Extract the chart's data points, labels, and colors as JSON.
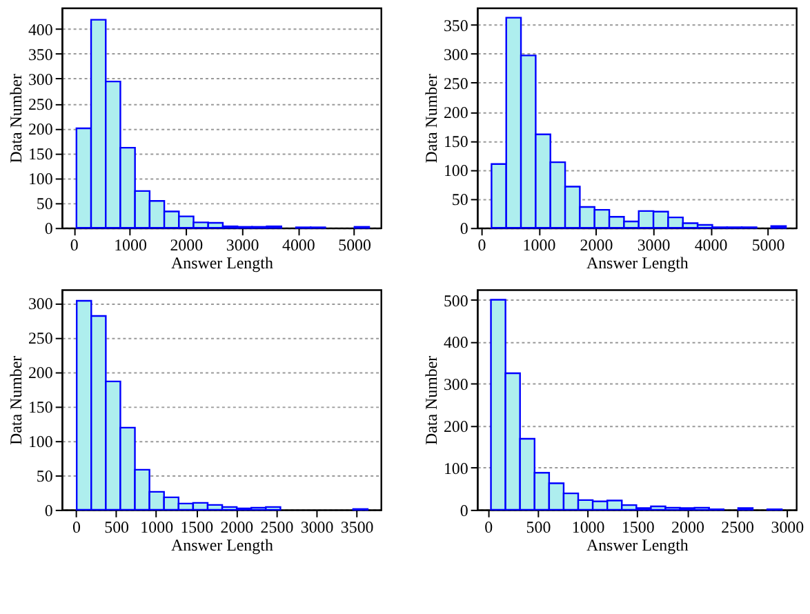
{
  "chart_data": [
    {
      "type": "histogram",
      "xlabel": "Answer Length",
      "ylabel": "Data Number",
      "color": "#aeeeee",
      "grid": "y",
      "bins": [
        50,
        311,
        572,
        833,
        1094,
        1355,
        1616,
        1877,
        2138,
        2399,
        2660,
        2921,
        3182,
        3443,
        3704,
        3965,
        4226,
        4487,
        4748,
        5009,
        5270
      ],
      "values": [
        200,
        418,
        294,
        161,
        74,
        54,
        33,
        23,
        11,
        10,
        3,
        2,
        2,
        3,
        0,
        1,
        1,
        0,
        0,
        2
      ],
      "xlim": [
        -210,
        5480
      ],
      "ylim": [
        0,
        442
      ],
      "xticks": [
        0,
        1000,
        2000,
        3000,
        4000,
        5000
      ],
      "yticks": [
        0,
        50,
        100,
        150,
        200,
        250,
        300,
        350,
        400
      ]
    },
    {
      "type": "histogram",
      "xlabel": "Answer Length",
      "ylabel": "Data Number",
      "color": "#aeeeee",
      "grid": "y",
      "bins": [
        180,
        437,
        694,
        951,
        1208,
        1465,
        1722,
        1979,
        2236,
        2493,
        2750,
        3007,
        3264,
        3521,
        3778,
        4035,
        4292,
        4549,
        4806,
        5063,
        5320
      ],
      "values": [
        110,
        362,
        297,
        161,
        113,
        71,
        36,
        31,
        19,
        11,
        29,
        28,
        18,
        8,
        5,
        1,
        1,
        1,
        0,
        3
      ],
      "xlim": [
        -70,
        5500
      ],
      "ylim": [
        0,
        379
      ],
      "xticks": [
        0,
        1000,
        2000,
        3000,
        4000,
        5000
      ],
      "yticks": [
        0,
        50,
        100,
        150,
        200,
        250,
        300,
        350
      ]
    },
    {
      "type": "histogram",
      "xlabel": "Answer Length",
      "ylabel": "Data Number",
      "color": "#aeeeee",
      "grid": "y",
      "bins": [
        10,
        191.5,
        373,
        554.5,
        736,
        917.5,
        1099,
        1280.5,
        1462,
        1643.5,
        1825,
        2006.5,
        2188,
        2369.5,
        2551,
        2732.5,
        2914,
        3095.5,
        3277,
        3458.5,
        3640
      ],
      "values": [
        303,
        281,
        186,
        119,
        58,
        26,
        18,
        9,
        10,
        7,
        4,
        2,
        3,
        4,
        0,
        0,
        0,
        0,
        0,
        1
      ],
      "xlim": [
        -175,
        3805
      ],
      "ylim": [
        0,
        319
      ],
      "xticks": [
        0,
        500,
        1000,
        1500,
        2000,
        2500,
        3000,
        3500
      ],
      "yticks": [
        0,
        50,
        100,
        150,
        200,
        250,
        300
      ]
    },
    {
      "type": "histogram",
      "xlabel": "Answer Length",
      "ylabel": "Data Number",
      "color": "#aeeeee",
      "grid": "y",
      "bins": [
        30,
        176,
        322,
        468,
        614,
        760,
        906,
        1052,
        1198,
        1344,
        1490,
        1636,
        1782,
        1928,
        2074,
        2220,
        2366,
        2512,
        2658,
        2804,
        2950
      ],
      "values": [
        500,
        325,
        169,
        88,
        63,
        39,
        23,
        20,
        22,
        11,
        4,
        8,
        5,
        4,
        5,
        1,
        0,
        4,
        0,
        1
      ],
      "xlim": [
        -108,
        3095
      ],
      "ylim": [
        0,
        524
      ],
      "xticks": [
        0,
        500,
        1000,
        1500,
        2000,
        2500,
        3000
      ],
      "yticks": [
        0,
        100,
        200,
        300,
        400,
        500
      ]
    }
  ]
}
